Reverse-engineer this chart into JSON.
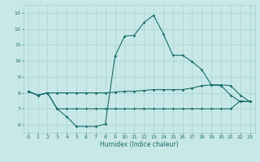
{
  "xlabel": "Humidex (Indice chaleur)",
  "bg_color": "#c8e8e8",
  "grid_color": "#a0cccc",
  "line_color": "#1a6b6b",
  "xlim": [
    -0.5,
    23.5
  ],
  "ylim": [
    5.5,
    13.5
  ],
  "xticks": [
    0,
    1,
    2,
    3,
    4,
    5,
    6,
    7,
    8,
    9,
    10,
    11,
    12,
    13,
    14,
    15,
    16,
    17,
    18,
    19,
    20,
    21,
    22,
    23
  ],
  "yticks": [
    6,
    7,
    8,
    9,
    10,
    11,
    12,
    13
  ],
  "line1_x": [
    0,
    1,
    2,
    3,
    4,
    5,
    6,
    7,
    8,
    9,
    10,
    11,
    12,
    13,
    14,
    15,
    16,
    17,
    18,
    19,
    20,
    21,
    22,
    23
  ],
  "line1_y": [
    8.1,
    7.85,
    8.0,
    7.0,
    6.5,
    5.9,
    5.9,
    5.9,
    6.05,
    10.3,
    11.55,
    11.6,
    12.4,
    12.85,
    11.7,
    10.35,
    10.35,
    9.95,
    9.45,
    8.5,
    8.45,
    7.85,
    7.45,
    7.45
  ],
  "line2_x": [
    0,
    1,
    2,
    3,
    4,
    5,
    6,
    7,
    8,
    9,
    10,
    11,
    12,
    13,
    14,
    15,
    16,
    17,
    18,
    19,
    20,
    21,
    22,
    23
  ],
  "line2_y": [
    8.1,
    7.85,
    8.0,
    8.0,
    8.0,
    8.0,
    8.0,
    8.0,
    8.0,
    8.05,
    8.1,
    8.1,
    8.15,
    8.2,
    8.2,
    8.2,
    8.2,
    8.3,
    8.45,
    8.5,
    8.5,
    8.45,
    7.85,
    7.45
  ],
  "line3_x": [
    0,
    1,
    2,
    3,
    4,
    5,
    6,
    7,
    8,
    9,
    10,
    11,
    12,
    13,
    14,
    15,
    16,
    17,
    18,
    19,
    20,
    21,
    22,
    23
  ],
  "line3_y": [
    8.1,
    7.85,
    8.0,
    7.0,
    7.0,
    7.0,
    7.0,
    7.0,
    7.0,
    7.0,
    7.0,
    7.0,
    7.0,
    7.0,
    7.0,
    7.0,
    7.0,
    7.0,
    7.0,
    7.0,
    7.0,
    7.0,
    7.5,
    7.45
  ]
}
